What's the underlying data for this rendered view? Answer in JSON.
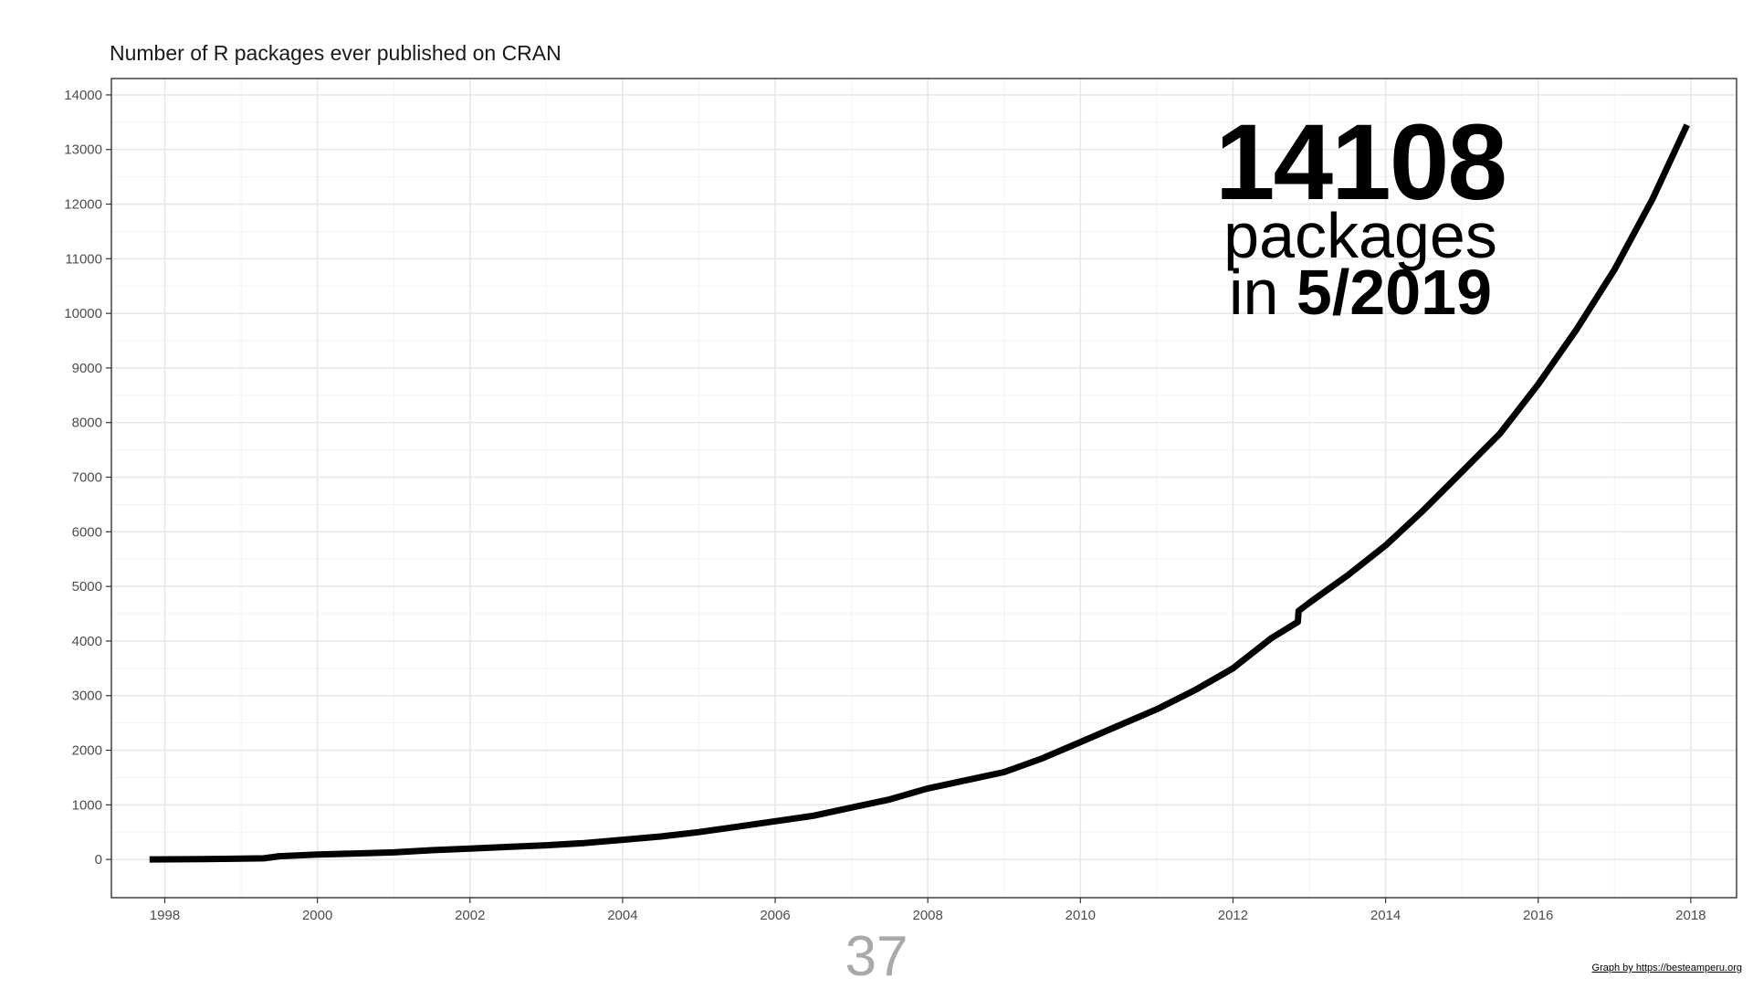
{
  "chart_data": {
    "type": "line",
    "title": "Number of R packages ever published on CRAN",
    "xlabel": "",
    "ylabel": "",
    "xlim": [
      1997.3,
      2018.6
    ],
    "ylim": [
      -700,
      14300
    ],
    "x_ticks": [
      "1998",
      "2000",
      "2002",
      "2004",
      "2006",
      "2008",
      "2010",
      "2012",
      "2014",
      "2016",
      "2018"
    ],
    "y_ticks": [
      "0",
      "1000",
      "2000",
      "3000",
      "4000",
      "5000",
      "6000",
      "7000",
      "8000",
      "9000",
      "10000",
      "11000",
      "12000",
      "13000",
      "14000"
    ],
    "grid": true,
    "legend": "none",
    "line_color": "#000000",
    "series": [
      {
        "x": [
          1997.8,
          1998.5,
          1999.0,
          1999.3,
          1999.5,
          2000.0,
          2000.5,
          2001.0,
          2001.5,
          2002.0,
          2002.5,
          2003.0,
          2003.5,
          2004.0,
          2004.5,
          2005.0,
          2005.5,
          2006.0,
          2006.5,
          2007.0,
          2007.5,
          2008.0,
          2008.5,
          2009.0,
          2009.5,
          2010.0,
          2010.5,
          2011.0,
          2011.5,
          2012.0,
          2012.5,
          2012.85,
          2012.86,
          2013.0,
          2013.5,
          2014.0,
          2014.5,
          2015.0,
          2015.5,
          2016.0,
          2016.5,
          2017.0,
          2017.5,
          2017.95
        ],
        "y": [
          0,
          5,
          15,
          20,
          60,
          90,
          110,
          130,
          170,
          200,
          230,
          260,
          300,
          360,
          420,
          500,
          600,
          700,
          800,
          950,
          1100,
          1300,
          1450,
          1600,
          1850,
          2150,
          2450,
          2750,
          3100,
          3500,
          4050,
          4350,
          4550,
          4700,
          5200,
          5750,
          6400,
          7100,
          7800,
          8700,
          9700,
          10800,
          12100,
          13450
        ]
      }
    ],
    "annotation": {
      "count": "14108",
      "line2": "packages",
      "line3_prefix": "in ",
      "line3_bold": "5/2019"
    }
  },
  "page_number": "37",
  "credit": "Graph by https://besteamperu.org"
}
